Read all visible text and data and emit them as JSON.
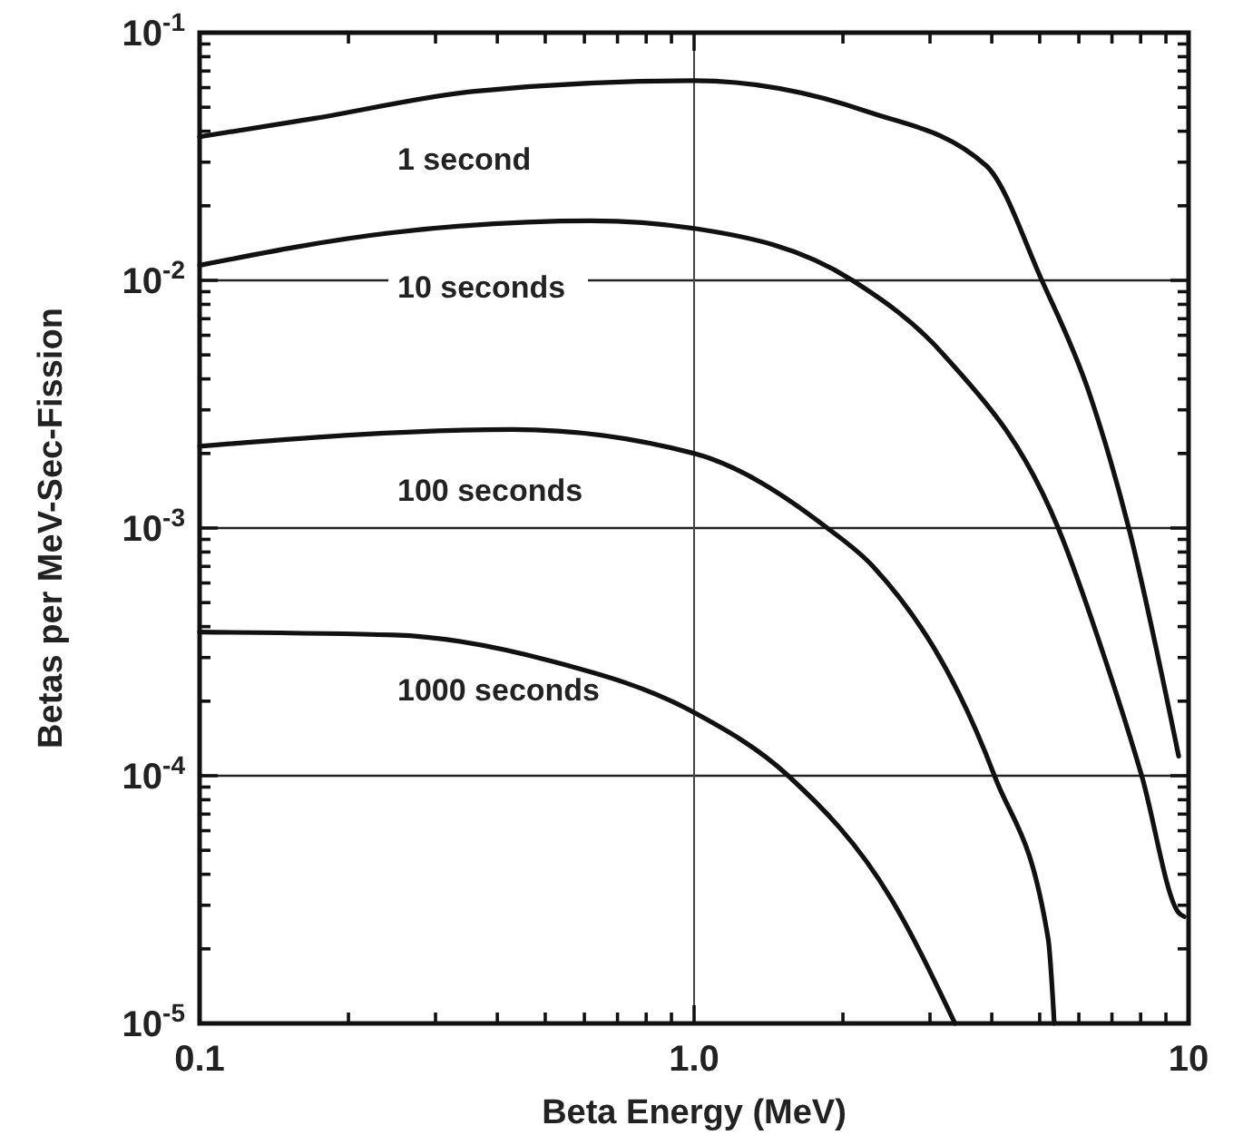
{
  "chart_data": {
    "type": "line",
    "xlabel": "Beta Energy (MeV)",
    "ylabel": "Betas per MeV-Sec-Fission",
    "log": "xy",
    "grid": "y",
    "line_style": "solid",
    "marker": "none",
    "xlim": [
      0.1,
      10
    ],
    "ylim": [
      1e-05,
      0.1
    ],
    "xticks": [
      {
        "value": 0.1,
        "label": "0.1"
      },
      {
        "value": 0.2,
        "label": null
      },
      {
        "value": 0.3,
        "label": null
      },
      {
        "value": 0.4,
        "label": null
      },
      {
        "value": 0.5,
        "label": null
      },
      {
        "value": 0.6,
        "label": null
      },
      {
        "value": 0.7,
        "label": null
      },
      {
        "value": 0.8,
        "label": null
      },
      {
        "value": 0.9,
        "label": null
      },
      {
        "value": 1,
        "label": "1.0"
      },
      {
        "value": 2,
        "label": null
      },
      {
        "value": 3,
        "label": null
      },
      {
        "value": 4,
        "label": null
      },
      {
        "value": 5,
        "label": null
      },
      {
        "value": 6,
        "label": null
      },
      {
        "value": 7,
        "label": null
      },
      {
        "value": 8,
        "label": null
      },
      {
        "value": 9,
        "label": null
      },
      {
        "value": 10,
        "label": "10"
      }
    ],
    "yticks": [
      {
        "value": 1e-05,
        "label": "10$^{-5}$"
      },
      {
        "value": 2e-05,
        "label": null
      },
      {
        "value": 3e-05,
        "label": null
      },
      {
        "value": 4e-05,
        "label": null
      },
      {
        "value": 5e-05,
        "label": null
      },
      {
        "value": 6e-05,
        "label": null
      },
      {
        "value": 7e-05,
        "label": null
      },
      {
        "value": 8e-05,
        "label": null
      },
      {
        "value": 9e-05,
        "label": null
      },
      {
        "value": 0.0001,
        "label": "10$^{-4}$"
      },
      {
        "value": 0.0002,
        "label": null
      },
      {
        "value": 0.0003,
        "label": null
      },
      {
        "value": 0.0004,
        "label": null
      },
      {
        "value": 0.0005,
        "label": null
      },
      {
        "value": 0.0006,
        "label": null
      },
      {
        "value": 0.0007,
        "label": null
      },
      {
        "value": 0.0008,
        "label": null
      },
      {
        "value": 0.0009,
        "label": null
      },
      {
        "value": 0.001,
        "label": "10$^{-3}$"
      },
      {
        "value": 0.002,
        "label": null
      },
      {
        "value": 0.003,
        "label": null
      },
      {
        "value": 0.004,
        "label": null
      },
      {
        "value": 0.005,
        "label": null
      },
      {
        "value": 0.006,
        "label": null
      },
      {
        "value": 0.007,
        "label": null
      },
      {
        "value": 0.008,
        "label": null
      },
      {
        "value": 0.009,
        "label": null
      },
      {
        "value": 0.01,
        "label": "10$^{-2}$"
      },
      {
        "value": 0.02,
        "label": null
      },
      {
        "value": 0.03,
        "label": null
      },
      {
        "value": 0.04,
        "label": null
      },
      {
        "value": 0.05,
        "label": null
      },
      {
        "value": 0.06,
        "label": null
      },
      {
        "value": 0.07,
        "label": null
      },
      {
        "value": 0.08,
        "label": null
      },
      {
        "value": 0.09,
        "label": null
      },
      {
        "value": 0.1,
        "label": "10$^{-1}$"
      }
    ],
    "ref_lines": [
      {
        "axis": "x",
        "value": 1,
        "color": "#444444"
      }
    ],
    "series": [
      {
        "name": "1 second",
        "color": "#111111",
        "x": [
          0.1,
          0.17,
          0.36,
          1,
          2.24,
          3.9,
          5.05,
          6.3,
          7.57,
          9.55
        ],
        "values": [
          0.038,
          0.045,
          0.058,
          0.064,
          0.048,
          0.029,
          0.01,
          0.0035,
          0.001,
          0.00012
        ]
      },
      {
        "name": "10 seconds",
        "color": "#111111",
        "x": [
          0.1,
          0.247,
          0.62,
          1,
          2.09,
          3.2,
          5.45,
          6.8,
          8.04,
          9.55,
          9.8
        ],
        "values": [
          0.0115,
          0.0156,
          0.0174,
          0.0162,
          0.01,
          0.005,
          0.001,
          0.00029,
          0.0001,
          2.8e-05,
          2.7e-05
        ]
      },
      {
        "name": "100 seconds",
        "color": "#111111",
        "x": [
          0.1,
          0.43,
          1,
          1.86,
          2.3,
          4.05,
          5.2,
          5.35
        ],
        "values": [
          0.00214,
          0.0025,
          0.002,
          0.001,
          0.0007,
          0.0001,
          2.2e-05,
          1e-05
        ]
      },
      {
        "name": "1000 seconds",
        "color": "#111111",
        "x": [
          0.1,
          0.247,
          0.515,
          1,
          1.55,
          2.5,
          3.37
        ],
        "values": [
          0.00038,
          0.00037,
          0.00029,
          0.00018,
          0.0001,
          3.2e-05,
          1e-05
        ]
      }
    ]
  }
}
